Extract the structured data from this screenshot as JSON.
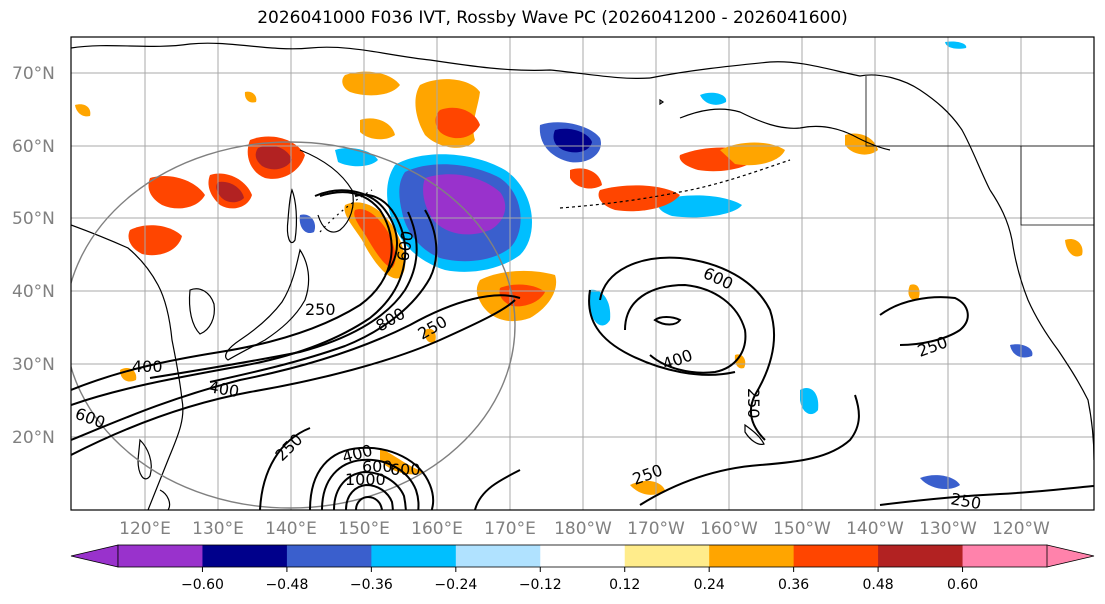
{
  "title": "2026041000 F036 IVT, Rossby Wave PC (2026041200 - 2026041600)",
  "lat_labels": [
    "70°N",
    "60°N",
    "50°N",
    "40°N",
    "30°N",
    "20°N"
  ],
  "lon_labels": [
    "120°E",
    "130°E",
    "140°E",
    "150°E",
    "160°E",
    "170°E",
    "180°W",
    "170°W",
    "160°W",
    "150°W",
    "140°W",
    "130°W",
    "120°W"
  ],
  "contour_labels": [
    "600",
    "250",
    "800",
    "250",
    "400",
    "400",
    "600",
    "250",
    "400",
    "600",
    "1000",
    "250",
    "600",
    "400",
    "250",
    "250",
    "250",
    "600"
  ],
  "colorbar": {
    "colors": [
      "#9932CC",
      "#00008B",
      "#3A5FCD",
      "#00BFFF",
      "#B0E2FF",
      "#FFFFFF",
      "#FFEC8B",
      "#FFA500",
      "#FF4500",
      "#B22222",
      "#FF82AB"
    ],
    "ticks": [
      "−0.60",
      "−0.48",
      "−0.36",
      "−0.24",
      "−0.12",
      "0.12",
      "0.24",
      "0.36",
      "0.48",
      "0.60"
    ]
  },
  "palette": {
    "purple": "#9932CC",
    "navy": "#00008B",
    "blue": "#3A5FCD",
    "cyan": "#00BFFF",
    "lightblue": "#B0E2FF",
    "yellow": "#FFEC8B",
    "orange": "#FFA500",
    "redorange": "#FF4500",
    "darkred": "#B22222",
    "pink": "#FF82AB"
  }
}
